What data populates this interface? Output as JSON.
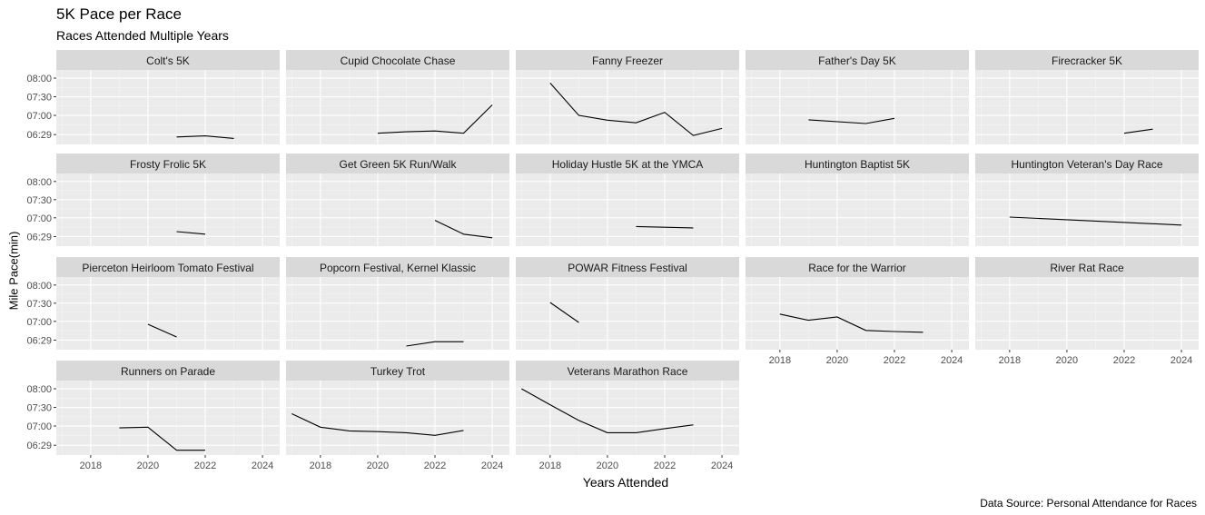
{
  "chart_data": {
    "type": "line",
    "title": "5K Pace per Race",
    "subtitle": "Races Attended Multiple Years",
    "caption": "Data Source: Personal Attendance for Races",
    "xlabel": "Years Attended",
    "ylabel": "Mile Pace(min)",
    "xlim": [
      2016.8,
      2024.6
    ],
    "ylim": [
      6.22,
      8.22
    ],
    "x_ticks": [
      2018,
      2020,
      2022,
      2024
    ],
    "x_tick_labels": [
      "2018",
      "2020",
      "2022",
      "2024"
    ],
    "y_ticks": [
      6.4833,
      7.0,
      7.5,
      8.0
    ],
    "y_tick_labels": [
      "06:29",
      "07:00",
      "07:30",
      "08:00"
    ],
    "grid": true,
    "layout": "facet_wrap, 5 columns",
    "panel_background": "#ebebeb",
    "strip_background": "#d9d9d9",
    "line_color": "#000000",
    "series": [
      {
        "name": "Colt's 5K",
        "x": [
          2021,
          2022,
          2023
        ],
        "y": [
          6.42,
          6.45,
          6.38
        ]
      },
      {
        "name": "Cupid Chocolate Chase",
        "x": [
          2020,
          2021,
          2022,
          2023,
          2024
        ],
        "y": [
          6.52,
          6.56,
          6.58,
          6.52,
          7.28
        ]
      },
      {
        "name": "Fanny Freezer",
        "x": [
          2018,
          2019,
          2020,
          2021,
          2022,
          2023,
          2024
        ],
        "y": [
          7.87,
          7.0,
          6.87,
          6.8,
          7.08,
          6.46,
          6.65
        ]
      },
      {
        "name": "Father's Day 5K",
        "x": [
          2019,
          2021,
          2022
        ],
        "y": [
          6.88,
          6.78,
          6.92
        ]
      },
      {
        "name": "Firecracker 5K",
        "x": [
          2022,
          2023
        ],
        "y": [
          6.52,
          6.63
        ]
      },
      {
        "name": "Frosty Frolic 5K",
        "x": [
          2021,
          2022
        ],
        "y": [
          6.62,
          6.55
        ]
      },
      {
        "name": "Get Green 5K Run/Walk",
        "x": [
          2022,
          2023,
          2024
        ],
        "y": [
          6.93,
          6.55,
          6.45
        ]
      },
      {
        "name": "Holiday Hustle 5K at the YMCA",
        "x": [
          2021,
          2023
        ],
        "y": [
          6.76,
          6.72
        ]
      },
      {
        "name": "Huntington Baptist 5K",
        "x": [],
        "y": []
      },
      {
        "name": "Huntington Veteran's Day Race",
        "x": [
          2018,
          2024
        ],
        "y": [
          7.02,
          6.8
        ]
      },
      {
        "name": "Pierceton Heirloom Tomato Festival",
        "x": [
          2020,
          2021
        ],
        "y": [
          6.92,
          6.57
        ]
      },
      {
        "name": "Popcorn Festival, Kernel Klassic",
        "x": [
          2021,
          2022,
          2023
        ],
        "y": [
          6.32,
          6.44,
          6.44
        ]
      },
      {
        "name": "POWAR Fitness Festival",
        "x": [
          2018,
          2019
        ],
        "y": [
          7.52,
          6.97
        ]
      },
      {
        "name": "Race for the Warrior",
        "x": [
          2018,
          2019,
          2020,
          2021,
          2022,
          2023
        ],
        "y": [
          7.2,
          7.03,
          7.12,
          6.75,
          6.72,
          6.7
        ]
      },
      {
        "name": "River Rat Race",
        "x": [],
        "y": []
      },
      {
        "name": "Runners on Parade",
        "x": [
          2019,
          2020,
          2021,
          2022
        ],
        "y": [
          6.95,
          6.97,
          6.35,
          6.35
        ]
      },
      {
        "name": "Turkey Trot",
        "x": [
          2017,
          2018,
          2019,
          2020,
          2021,
          2022,
          2023
        ],
        "y": [
          7.33,
          6.97,
          6.87,
          6.85,
          6.82,
          6.75,
          6.88
        ]
      },
      {
        "name": "Veterans Marathon Race",
        "x": [
          2017,
          2018,
          2019,
          2020,
          2021,
          2022,
          2023
        ],
        "y": [
          8.0,
          7.57,
          7.15,
          6.82,
          6.82,
          6.93,
          7.03
        ]
      }
    ]
  }
}
